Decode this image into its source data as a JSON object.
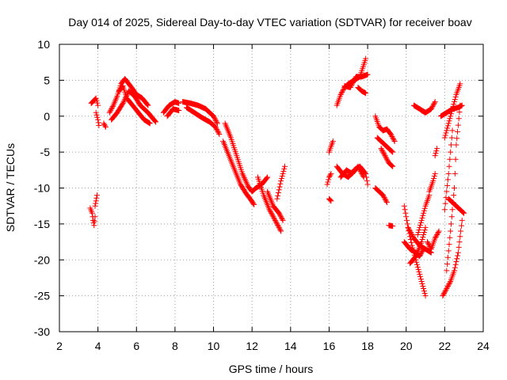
{
  "chart_data": {
    "type": "scatter",
    "title": "Day 014 of 2025, Sidereal Day-to-day VTEC variation (SDTVAR) for receiver boav",
    "xlabel": "GPS time / hours",
    "ylabel": "SDTVAR / TECUs",
    "xlim": [
      2,
      24
    ],
    "ylim": [
      -30,
      10
    ],
    "grid": true,
    "xticks": [
      2,
      4,
      6,
      8,
      10,
      12,
      14,
      16,
      18,
      20,
      22,
      24
    ],
    "yticks": [
      -30,
      -25,
      -20,
      -15,
      -10,
      -5,
      0,
      5,
      10
    ],
    "marker": "+",
    "color": "#ff0000",
    "tracks": [
      {
        "x": [
          3.6,
          3.7,
          3.75,
          3.8,
          3.85
        ],
        "y": [
          -12.8,
          -13.5,
          -14.5,
          -15.2,
          -14.0
        ]
      },
      {
        "x": [
          3.85,
          3.9,
          3.95
        ],
        "y": [
          -12.5,
          -11.8,
          -11.0
        ]
      },
      {
        "x": [
          3.65,
          3.8,
          3.9,
          4.0
        ],
        "y": [
          1.8,
          2.2,
          2.5,
          1.5
        ]
      },
      {
        "x": [
          3.9,
          4.0,
          4.05
        ],
        "y": [
          0.5,
          -0.5,
          -1.3
        ]
      },
      {
        "x": [
          4.3,
          4.4
        ],
        "y": [
          -1.0,
          -1.5
        ]
      },
      {
        "x": [
          4.6,
          4.8,
          5.0,
          5.2,
          5.4,
          5.6,
          5.8,
          6.0,
          6.3,
          6.6
        ],
        "y": [
          0.5,
          1.5,
          2.8,
          4.5,
          5.2,
          4.5,
          3.8,
          3.0,
          2.5,
          1.5
        ]
      },
      {
        "x": [
          4.7,
          5.0,
          5.3,
          5.6,
          5.9,
          6.2,
          6.6,
          7.0
        ],
        "y": [
          -0.5,
          0.5,
          1.8,
          3.5,
          2.8,
          1.5,
          0.5,
          -0.8
        ]
      },
      {
        "x": [
          5.1,
          5.3,
          5.5,
          5.8,
          6.1,
          6.4,
          6.7
        ],
        "y": [
          3.5,
          4.2,
          2.5,
          1.5,
          0.5,
          -0.5,
          -1.0
        ]
      },
      {
        "x": [
          7.4,
          7.7,
          8.0,
          8.2
        ],
        "y": [
          0.5,
          1.5,
          2.0,
          1.8
        ]
      },
      {
        "x": [
          7.6,
          7.9,
          8.2
        ],
        "y": [
          0.0,
          1.0,
          0.8
        ]
      },
      {
        "x": [
          8.4,
          8.8,
          9.2,
          9.6,
          10.0,
          10.2
        ],
        "y": [
          2.0,
          1.8,
          1.5,
          1.0,
          0.0,
          -1.0
        ]
      },
      {
        "x": [
          8.6,
          9.0,
          9.4,
          9.8,
          10.1,
          10.3
        ],
        "y": [
          1.2,
          0.5,
          -0.2,
          -0.8,
          -1.5,
          -2.5
        ]
      },
      {
        "x": [
          10.6,
          10.9,
          11.2,
          11.5,
          11.8,
          12.0,
          12.2,
          12.5,
          12.8
        ],
        "y": [
          -1.0,
          -3.0,
          -5.5,
          -8.0,
          -9.8,
          -10.5,
          -10.0,
          -9.5,
          -8.5
        ]
      },
      {
        "x": [
          10.5,
          10.8,
          11.1,
          11.4,
          11.7,
          11.9,
          12.1
        ],
        "y": [
          -3.5,
          -5.5,
          -7.5,
          -9.5,
          -10.8,
          -11.5,
          -12.3
        ]
      },
      {
        "x": [
          12.3,
          12.6,
          12.9,
          13.2,
          13.5
        ],
        "y": [
          -8.5,
          -11.0,
          -13.0,
          -14.5,
          -16.0
        ]
      },
      {
        "x": [
          12.8,
          13.1,
          13.4,
          13.6
        ],
        "y": [
          -10.5,
          -12.5,
          -13.5,
          -14.5
        ]
      },
      {
        "x": [
          13.3,
          13.5,
          13.7
        ],
        "y": [
          -11.5,
          -9.0,
          -7.0
        ]
      },
      {
        "x": [
          16.0,
          16.1,
          16.2
        ],
        "y": [
          -5.0,
          -4.2,
          -3.5
        ]
      },
      {
        "x": [
          15.9,
          16.0,
          16.1
        ],
        "y": [
          -9.5,
          -8.5,
          -8.0
        ]
      },
      {
        "x": [
          16.0,
          16.1
        ],
        "y": [
          -11.5,
          -11.8
        ]
      },
      {
        "x": [
          16.4,
          16.6,
          16.8,
          17.0,
          17.3,
          17.6,
          17.9
        ],
        "y": [
          1.5,
          3.0,
          4.0,
          4.5,
          5.0,
          5.5,
          8.0
        ]
      },
      {
        "x": [
          16.8,
          17.1,
          17.4,
          17.7,
          18.0
        ],
        "y": [
          4.2,
          4.0,
          5.5,
          5.5,
          5.8
        ]
      },
      {
        "x": [
          17.5,
          17.7,
          17.9
        ],
        "y": [
          4.0,
          3.5,
          3.2
        ]
      },
      {
        "x": [
          16.4,
          16.7,
          17.0,
          17.3,
          17.6,
          17.9,
          18.0
        ],
        "y": [
          -7.0,
          -8.0,
          -8.5,
          -7.5,
          -7.0,
          -8.0,
          -9.5
        ]
      },
      {
        "x": [
          16.6,
          16.9,
          17.2,
          17.5,
          17.8
        ],
        "y": [
          -8.5,
          -7.5,
          -8.0,
          -7.0,
          -8.5
        ]
      },
      {
        "x": [
          18.4,
          18.6,
          18.8,
          19.0,
          19.2,
          19.4
        ],
        "y": [
          0.0,
          -1.5,
          -2.0,
          -1.8,
          -2.5,
          -3.5
        ]
      },
      {
        "x": [
          18.5,
          18.7,
          18.9,
          19.1,
          19.3
        ],
        "y": [
          -3.0,
          -3.5,
          -4.0,
          -4.5,
          -5.0
        ]
      },
      {
        "x": [
          18.7,
          18.9,
          19.1,
          19.3
        ],
        "y": [
          -4.5,
          -5.5,
          -6.5,
          -7.0
        ]
      },
      {
        "x": [
          18.4,
          18.6,
          18.8,
          19.0
        ],
        "y": [
          -10.0,
          -10.5,
          -11.0,
          -12.0
        ]
      },
      {
        "x": [
          19.1,
          19.3
        ],
        "y": [
          -15.2,
          -15.3
        ]
      },
      {
        "x": [
          19.9,
          20.1,
          20.3,
          20.5,
          20.7,
          20.9,
          21.0
        ],
        "y": [
          -12.5,
          -15.5,
          -18.0,
          -20.0,
          -22.0,
          -24.0,
          -25.0
        ]
      },
      {
        "x": [
          19.9,
          20.2,
          20.5,
          20.7,
          20.9
        ],
        "y": [
          -17.5,
          -18.5,
          -19.0,
          -19.5,
          -18.5
        ]
      },
      {
        "x": [
          20.1,
          20.4,
          20.7,
          21.0,
          21.3
        ],
        "y": [
          -15.5,
          -17.0,
          -18.0,
          -18.5,
          -19.0
        ]
      },
      {
        "x": [
          20.2,
          20.5,
          20.8,
          21.0
        ],
        "y": [
          -20.5,
          -19.5,
          -17.5,
          -15.5
        ]
      },
      {
        "x": [
          20.6,
          20.8,
          21.0,
          21.2
        ],
        "y": [
          -16.5,
          -14.5,
          -12.5,
          -11.0
        ]
      },
      {
        "x": [
          20.4,
          20.7,
          21.0,
          21.3,
          21.5
        ],
        "y": [
          1.5,
          1.0,
          0.5,
          1.0,
          2.0
        ]
      },
      {
        "x": [
          20.8,
          21.0
        ],
        "y": [
          0.8,
          0.5
        ]
      },
      {
        "x": [
          21.1,
          21.3,
          21.5,
          21.7
        ],
        "y": [
          -17.5,
          -18.5,
          -17.0,
          -16.0
        ]
      },
      {
        "x": [
          21.2,
          21.4,
          21.5
        ],
        "y": [
          -10.5,
          -9.0,
          -8.0
        ]
      },
      {
        "x": [
          21.5,
          21.6
        ],
        "y": [
          -5.5,
          -4.5
        ]
      },
      {
        "x": [
          21.8,
          22.1,
          22.4,
          22.7,
          22.9
        ],
        "y": [
          0.0,
          0.5,
          1.0,
          1.2,
          1.5
        ]
      },
      {
        "x": [
          22.0,
          22.2,
          22.4,
          22.6,
          22.8
        ],
        "y": [
          -3.0,
          -1.0,
          1.0,
          3.0,
          4.5
        ]
      },
      {
        "x": [
          21.9,
          22.1,
          22.3,
          22.5,
          22.7,
          22.9
        ],
        "y": [
          -25.0,
          -24.0,
          -23.0,
          -21.5,
          -19.0,
          -14.5
        ]
      },
      {
        "x": [
          22.1,
          22.3,
          22.5,
          22.6,
          22.8
        ],
        "y": [
          -21.5,
          -16.0,
          -10.0,
          -4.0,
          1.5
        ]
      },
      {
        "x": [
          22.2,
          22.4,
          22.6,
          22.8,
          23.0
        ],
        "y": [
          -11.5,
          -12.0,
          -12.5,
          -13.0,
          -13.5
        ]
      },
      {
        "x": [
          22.0,
          22.2,
          22.4
        ],
        "y": [
          -13.0,
          -8.0,
          -2.0
        ]
      }
    ]
  }
}
